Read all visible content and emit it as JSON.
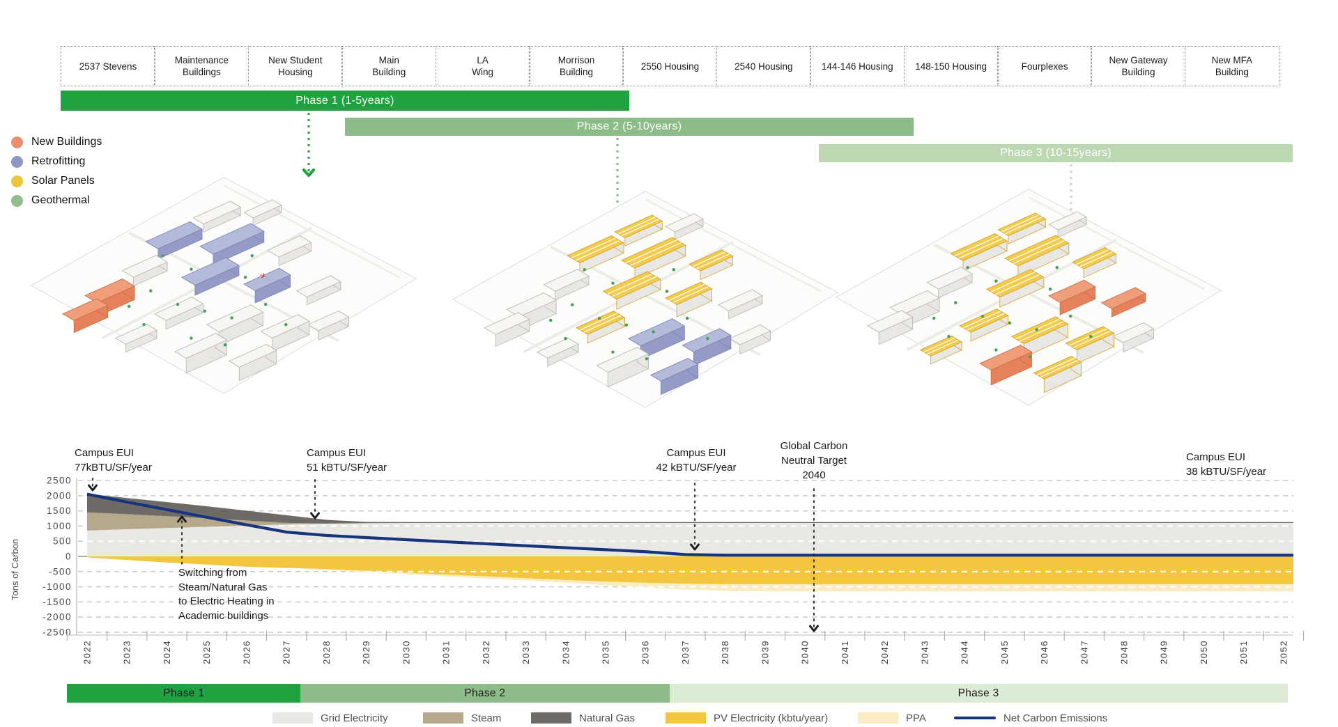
{
  "building_timeline": {
    "buildings": [
      {
        "lines": [
          "2537 Stevens"
        ]
      },
      {
        "lines": [
          "Maintenance",
          "Buildings"
        ]
      },
      {
        "lines": [
          "New Student",
          "Housing"
        ]
      },
      {
        "lines": [
          "Main",
          "Building"
        ]
      },
      {
        "lines": [
          "LA",
          "Wing"
        ]
      },
      {
        "lines": [
          "Morrison",
          "Building"
        ]
      },
      {
        "lines": [
          "2550 Housing"
        ]
      },
      {
        "lines": [
          "2540 Housing"
        ]
      },
      {
        "lines": [
          "144-146 Housing"
        ]
      },
      {
        "lines": [
          "148-150 Housing"
        ]
      },
      {
        "lines": [
          "Fourplexes"
        ]
      },
      {
        "lines": [
          "New Gateway",
          "Building"
        ]
      },
      {
        "lines": [
          "New MFA",
          "Building"
        ]
      }
    ]
  },
  "phases_top": [
    {
      "label": "Phase 1 (1-5years)",
      "from_building": 0,
      "to_building": 5,
      "color": "#1fa240",
      "text_color": "#ffffff"
    },
    {
      "label": "Phase 2 (5-10years)",
      "from_building": 3,
      "to_building": 8,
      "color": "#8cbd89",
      "text_color": "#ffffff"
    },
    {
      "label": "Phase 3 (10-15years)",
      "from_building": 8,
      "to_building": 12,
      "color": "#bed7b3",
      "text_color": "#ffffff"
    }
  ],
  "map_legend": [
    {
      "label": "New Buildings",
      "color": "#e88e6d"
    },
    {
      "label": "Retrofitting",
      "color": "#8e96c4"
    },
    {
      "label": "Solar Panels",
      "color": "#e9c73b"
    },
    {
      "label": "Geothermal",
      "color": "#8fbe8d"
    }
  ],
  "maps": [
    {
      "id": "phase-1-campus",
      "phase": "Phase 1"
    },
    {
      "id": "phase-2-campus",
      "phase": "Phase 2"
    },
    {
      "id": "phase-3-campus",
      "phase": "Phase 3"
    }
  ],
  "chart_data": {
    "type": "area",
    "title": "",
    "xlabel": "",
    "ylabel": "Tons of Carbon",
    "ylim": [
      -2500,
      2500
    ],
    "ytick_step": 500,
    "grid": "dashed",
    "legend_position": "bottom",
    "x": [
      2022,
      2023,
      2024,
      2025,
      2026,
      2027,
      2028,
      2029,
      2030,
      2031,
      2032,
      2033,
      2034,
      2035,
      2036,
      2037,
      2038,
      2039,
      2040,
      2041,
      2042,
      2043,
      2044,
      2045,
      2046,
      2047,
      2048,
      2049,
      2050,
      2051,
      2052
    ],
    "values": {
      "grid_top": [
        850,
        895,
        935,
        975,
        1015,
        1050,
        1080,
        1095,
        1100,
        1100,
        1100,
        1100,
        1100,
        1100,
        1100,
        1100,
        1100,
        1100,
        1100,
        1100,
        1100,
        1100,
        1100,
        1100,
        1100,
        1100,
        1100,
        1100,
        1100,
        1100,
        1100
      ],
      "steam_top": [
        1450,
        1390,
        1325,
        1255,
        1180,
        1105,
        1080,
        1095,
        1100,
        1100,
        1100,
        1100,
        1100,
        1100,
        1100,
        1100,
        1100,
        1100,
        1100,
        1100,
        1100,
        1100,
        1100,
        1100,
        1100,
        1100,
        1100,
        1100,
        1100,
        1100,
        1100
      ],
      "gas_top": [
        2060,
        1925,
        1790,
        1650,
        1505,
        1355,
        1205,
        1135,
        1130,
        1130,
        1130,
        1130,
        1130,
        1130,
        1130,
        1130,
        1130,
        1130,
        1130,
        1130,
        1130,
        1130,
        1130,
        1130,
        1130,
        1130,
        1130,
        1130,
        1130,
        1130,
        1130
      ],
      "pv_bottom": [
        -30,
        -120,
        -200,
        -270,
        -340,
        -380,
        -420,
        -480,
        -540,
        -600,
        -660,
        -720,
        -780,
        -830,
        -870,
        -900,
        -920,
        -920,
        -920,
        -920,
        -920,
        -920,
        -920,
        -920,
        -920,
        -920,
        -920,
        -920,
        -920,
        -920,
        -920
      ],
      "ppa_bottom": [
        -30,
        -120,
        -200,
        -270,
        -340,
        -380,
        -450,
        -520,
        -590,
        -660,
        -730,
        -800,
        -870,
        -950,
        -1030,
        -1090,
        -1140,
        -1150,
        -1150,
        -1150,
        -1150,
        -1150,
        -1150,
        -1150,
        -1150,
        -1150,
        -1150,
        -1150,
        -1150,
        -1150,
        -1150
      ],
      "net": [
        2050,
        1790,
        1540,
        1290,
        1040,
        800,
        690,
        620,
        550,
        480,
        415,
        350,
        285,
        220,
        155,
        60,
        40,
        40,
        40,
        40,
        40,
        40,
        40,
        40,
        40,
        40,
        40,
        40,
        40,
        40,
        40
      ]
    },
    "series": [
      {
        "name": "Grid Electricity",
        "type": "area",
        "color": "#eae8e5",
        "top": "grid_top",
        "bottom": "zero"
      },
      {
        "name": "Steam",
        "type": "area",
        "color": "#b6a88b",
        "top": "steam_top",
        "bottom": "grid_top"
      },
      {
        "name": "Natural Gas",
        "type": "area",
        "color": "#6e6b66",
        "top": "gas_top",
        "bottom": "steam_top"
      },
      {
        "name": "PV Electricity (kbtu/year)",
        "type": "area",
        "color": "#f2c63e",
        "top": "zero",
        "bottom": "pv_bottom"
      },
      {
        "name": "PPA",
        "type": "area",
        "color": "#f9ecc3",
        "top": "pv_bottom",
        "bottom": "ppa_bottom"
      },
      {
        "name": "Net Carbon Emissions",
        "type": "line",
        "color": "#17357d",
        "values": "net"
      }
    ],
    "legend": [
      {
        "label": "Grid Electricity",
        "color": "#eae8e5",
        "swatch": "rect"
      },
      {
        "label": "Steam",
        "color": "#b6a88b",
        "swatch": "rect"
      },
      {
        "label": "Natural Gas",
        "color": "#6e6b66",
        "swatch": "rect"
      },
      {
        "label": "PV Electricity (kbtu/year)",
        "color": "#f2c63e",
        "swatch": "rect"
      },
      {
        "label": "PPA",
        "color": "#f9ecc3",
        "swatch": "rect"
      },
      {
        "label": "Net Carbon Emissions",
        "color": "#17357d",
        "swatch": "line"
      }
    ],
    "phase_bands": [
      {
        "label": "Phase 1",
        "year_from": 2021.5,
        "year_to": 2027.35,
        "color": "#1fa240"
      },
      {
        "label": "Phase 2",
        "year_from": 2027.35,
        "year_to": 2036.6,
        "color": "#8cbd89"
      },
      {
        "label": "Phase 3",
        "year_from": 2036.6,
        "year_to": 2052.1,
        "color": "#dcebd3"
      }
    ],
    "annotations": [
      {
        "id": "eui-77",
        "text": "Campus EUI\n77kBTU/SF/year",
        "arrow_to_year": 2022
      },
      {
        "id": "eui-51",
        "text": "Campus EUI\n51 kBTU/SF/year",
        "arrow_to_year": 2027.7
      },
      {
        "id": "eui-42",
        "text": "Campus EUI\n42 kBTU/SF/year",
        "arrow_to_year": 2037.2
      },
      {
        "id": "carbon-neutral-2040",
        "text": "Global Carbon\nNeutral Target\n2040",
        "arrow_to_year": 2040
      },
      {
        "id": "eui-38",
        "text": "Campus EUI\n38 kBTU/SF/year",
        "arrow_to_year": null
      },
      {
        "id": "switching",
        "text": "Switching from\nSteam/Natural Gas\nto Electric Heating in\nAcademic buildings",
        "arrow_to_year": 2024.4
      }
    ]
  }
}
